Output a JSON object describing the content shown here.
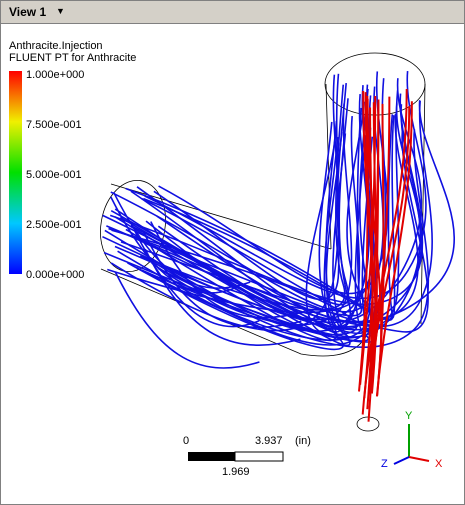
{
  "window": {
    "title": "View 1"
  },
  "legend": {
    "title": "Anthracite.Injection",
    "subtitle": "FLUENT PT for Anthracite",
    "ticks": [
      "1.000e+000",
      "7.500e-001",
      "5.000e-001",
      "2.500e-001",
      "0.000e+000"
    ]
  },
  "scale": {
    "start": "0",
    "end": "3.937",
    "unit": "(in)",
    "mid": "1.969"
  },
  "axes": {
    "y": "Y",
    "z": "Z",
    "x": "X"
  }
}
